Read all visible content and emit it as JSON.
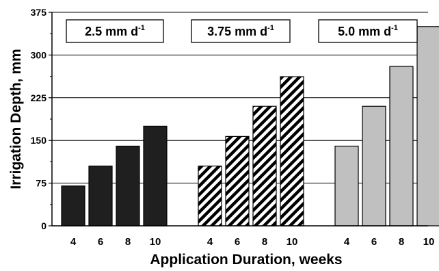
{
  "chart_data": {
    "type": "bar",
    "xlabel": "Application Duration, weeks",
    "ylabel": "Irrigation Depth, mm",
    "ylim": [
      0,
      375
    ],
    "yticks": [
      "0",
      "75",
      "150",
      "225",
      "300",
      "375"
    ],
    "grid": true,
    "groups": [
      {
        "label_main": "2.5 mm d",
        "label_sup": "-1",
        "fill": "#1f1f1f",
        "pattern": "solid",
        "categories": [
          "4",
          "6",
          "8",
          "10"
        ],
        "values": [
          70,
          105,
          140,
          175
        ]
      },
      {
        "label_main": "3.75 mm d",
        "label_sup": "-1",
        "fill": "#000000",
        "pattern": "diagonal-stripes",
        "categories": [
          "4",
          "6",
          "8",
          "10"
        ],
        "values": [
          105,
          157,
          210,
          262
        ]
      },
      {
        "label_main": "5.0 mm d",
        "label_sup": "-1",
        "fill": "#c0c0c0",
        "pattern": "solid",
        "categories": [
          "4",
          "6",
          "8",
          "10"
        ],
        "values": [
          140,
          210,
          280,
          350
        ]
      }
    ]
  }
}
